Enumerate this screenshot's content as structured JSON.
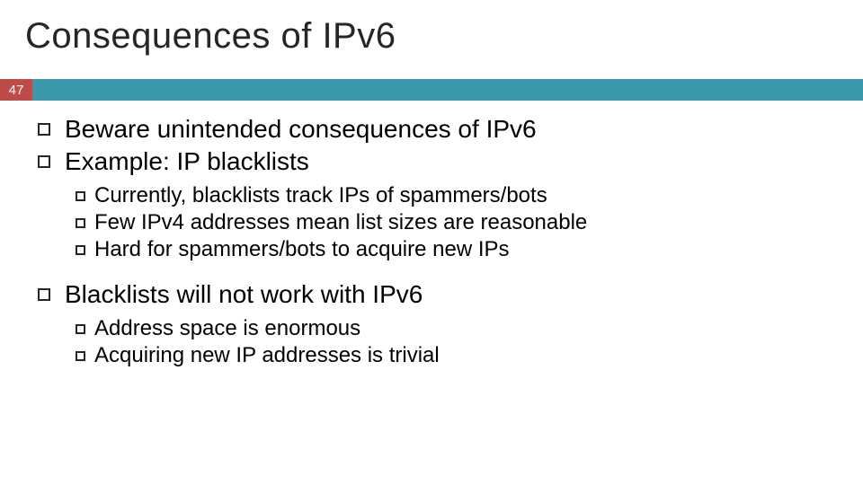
{
  "title": "Consequences of IPv6",
  "page_number": "47",
  "accent_color": "#3b97aa",
  "badge_color": "#be4b48",
  "background_color": "#ffffff",
  "text_color": "#000000",
  "title_fontsize": 40,
  "body_fontsize_l1": 28,
  "body_fontsize_l2": 24,
  "bullets": {
    "l1_0": "Beware unintended consequences of IPv6",
    "l1_1": "Example: IP blacklists",
    "l1_1_children": {
      "0": "Currently, blacklists track IPs of spammers/bots",
      "1": "Few IPv4 addresses mean list sizes are reasonable",
      "2": "Hard for spammers/bots to acquire new IPs"
    },
    "l1_2": "Blacklists will not work with IPv6",
    "l1_2_children": {
      "0": "Address space is enormous",
      "1": "Acquiring new IP addresses is trivial"
    }
  }
}
